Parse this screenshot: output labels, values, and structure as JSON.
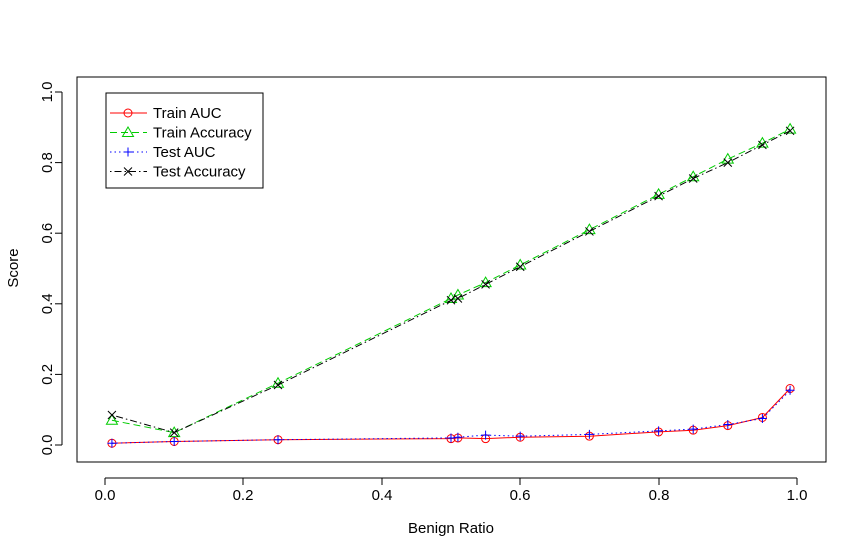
{
  "chart_data": {
    "type": "line",
    "title": "",
    "xlabel": "Benign Ratio",
    "ylabel": "Score",
    "xlim": [
      -0.04,
      1.04
    ],
    "ylim": [
      -0.04,
      1.04
    ],
    "xticks": [
      "0.0",
      "0.2",
      "0.4",
      "0.6",
      "0.8",
      "1.0"
    ],
    "yticks": [
      "0.0",
      "0.2",
      "0.4",
      "0.6",
      "0.8",
      "1.0"
    ],
    "grid": false,
    "legend_position": "top-left",
    "x": [
      0.01,
      0.1,
      0.25,
      0.5,
      0.51,
      0.55,
      0.6,
      0.7,
      0.8,
      0.85,
      0.9,
      0.95,
      0.99
    ],
    "series": [
      {
        "name": "Train AUC",
        "color": "#ff0000",
        "line_style": "solid",
        "marker": "circle",
        "values": [
          0.005,
          0.01,
          0.015,
          0.018,
          0.02,
          0.018,
          0.022,
          0.025,
          0.037,
          0.042,
          0.055,
          0.078,
          0.16
        ]
      },
      {
        "name": "Train Accuracy",
        "color": "#00cc00",
        "line_style": "dashed",
        "marker": "triangle",
        "values": [
          0.07,
          0.035,
          0.175,
          0.415,
          0.425,
          0.46,
          0.51,
          0.61,
          0.71,
          0.76,
          0.81,
          0.855,
          0.895
        ]
      },
      {
        "name": "Test AUC",
        "color": "#0000ff",
        "line_style": "dotted",
        "marker": "plus",
        "values": [
          0.005,
          0.01,
          0.015,
          0.02,
          0.022,
          0.028,
          0.025,
          0.03,
          0.04,
          0.045,
          0.058,
          0.075,
          0.155
        ]
      },
      {
        "name": "Test Accuracy",
        "color": "#000000",
        "line_style": "dotdash",
        "marker": "x",
        "values": [
          0.085,
          0.035,
          0.17,
          0.41,
          0.415,
          0.455,
          0.505,
          0.605,
          0.705,
          0.755,
          0.8,
          0.85,
          0.89
        ]
      }
    ]
  }
}
